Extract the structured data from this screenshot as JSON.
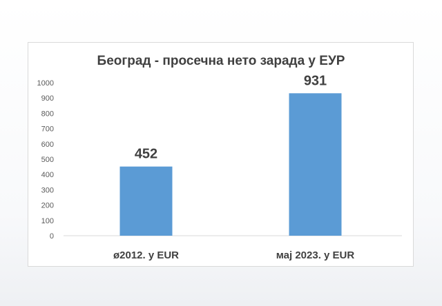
{
  "chart_data": {
    "type": "bar",
    "title": "Београд - просечна нето зарада у ЕУР",
    "categories": [
      "ø2012. у EUR",
      "мај 2023. у EUR"
    ],
    "values": [
      452,
      931
    ],
    "data_labels": [
      "452",
      "931"
    ],
    "yticks": [
      "0",
      "100",
      "200",
      "300",
      "400",
      "500",
      "600",
      "700",
      "800",
      "900",
      "1000"
    ],
    "ylim": [
      0,
      1000
    ],
    "grid": false,
    "legend": "none",
    "bar_color": "#5b9bd5"
  }
}
